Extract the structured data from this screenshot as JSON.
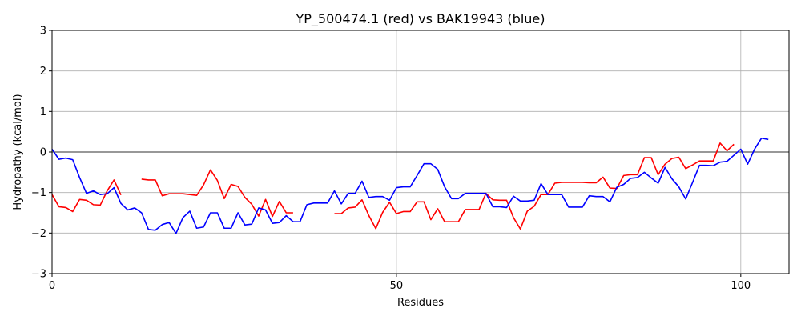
{
  "chart_data": {
    "type": "line",
    "title": "YP_500474.1 (red) vs BAK19943 (blue)",
    "xlabel": "Residues",
    "ylabel": "Hydropathy (kcal/mol)",
    "xlim": [
      0,
      107
    ],
    "ylim": [
      -3,
      3
    ],
    "xticks": [
      0,
      50,
      100
    ],
    "yticks": [
      -3,
      -2,
      -1,
      0,
      1,
      2,
      3
    ],
    "grid": true,
    "zero_line": true,
    "series": [
      {
        "color": "#ff0000",
        "segments": [
          {
            "x": [
              0,
              1,
              2,
              3,
              4,
              5,
              6,
              7,
              8,
              9,
              10
            ],
            "y": [
              -1.05,
              -1.35,
              -1.37,
              -1.47,
              -1.17,
              -1.19,
              -1.3,
              -1.31,
              -0.96,
              -0.69,
              -1.06
            ]
          },
          {
            "x": [
              13,
              14,
              15,
              16,
              17,
              18,
              19,
              20,
              21,
              22,
              23,
              24,
              25,
              26,
              27,
              28,
              29,
              30,
              31,
              32,
              33,
              34,
              35
            ],
            "y": [
              -0.67,
              -0.69,
              -0.69,
              -1.08,
              -1.03,
              -1.03,
              -1.03,
              -1.05,
              -1.07,
              -0.81,
              -0.44,
              -0.7,
              -1.15,
              -0.8,
              -0.85,
              -1.12,
              -1.29,
              -1.58,
              -1.17,
              -1.59,
              -1.22,
              -1.5,
              -1.5
            ]
          },
          {
            "x": [
              41,
              42,
              43,
              44,
              45,
              46,
              47,
              48,
              49,
              50,
              51,
              52,
              53,
              54,
              55,
              56,
              57,
              58,
              59,
              60,
              61,
              62,
              63,
              64,
              65,
              66,
              67,
              68,
              69,
              70,
              71,
              72,
              73,
              74,
              75,
              76,
              77,
              78,
              79,
              80,
              81,
              82,
              83,
              84,
              85,
              86,
              87,
              88,
              89,
              90,
              91,
              92,
              93,
              94,
              95,
              96,
              97,
              98,
              99
            ],
            "y": [
              -1.52,
              -1.52,
              -1.38,
              -1.36,
              -1.18,
              -1.57,
              -1.89,
              -1.49,
              -1.24,
              -1.52,
              -1.47,
              -1.47,
              -1.23,
              -1.23,
              -1.67,
              -1.4,
              -1.72,
              -1.72,
              -1.72,
              -1.42,
              -1.42,
              -1.42,
              -1.02,
              -1.18,
              -1.19,
              -1.19,
              -1.62,
              -1.9,
              -1.46,
              -1.34,
              -1.05,
              -1.05,
              -0.77,
              -0.75,
              -0.75,
              -0.75,
              -0.75,
              -0.76,
              -0.76,
              -0.62,
              -0.89,
              -0.9,
              -0.58,
              -0.56,
              -0.56,
              -0.14,
              -0.14,
              -0.56,
              -0.3,
              -0.16,
              -0.13,
              -0.41,
              -0.32,
              -0.22,
              -0.22,
              -0.22,
              0.22,
              0.03,
              0.19
            ]
          }
        ]
      },
      {
        "color": "#0000ff",
        "segments": [
          {
            "x": [
              0,
              1,
              2,
              3,
              4,
              5,
              6,
              7,
              8,
              9,
              10,
              11,
              12,
              13,
              14,
              15,
              16,
              17,
              18,
              19,
              20,
              21,
              22,
              23,
              24,
              25,
              26,
              27,
              28,
              29,
              30,
              31,
              32,
              33,
              34,
              35,
              36,
              37,
              38,
              39,
              40,
              41,
              42,
              43,
              44,
              45,
              46,
              47,
              48,
              49,
              50,
              51,
              52,
              53,
              54,
              55,
              56,
              57,
              58,
              59,
              60,
              61,
              62,
              63,
              64,
              65,
              66,
              67,
              68,
              69,
              70,
              71,
              72,
              73,
              74,
              75,
              76,
              77,
              78,
              79,
              80,
              81,
              82,
              83,
              84,
              85,
              86,
              87,
              88,
              89,
              90,
              91,
              92,
              93,
              94,
              95,
              96,
              97,
              98,
              99,
              100,
              101,
              102,
              103,
              104
            ],
            "y": [
              0.07,
              -0.18,
              -0.15,
              -0.19,
              -0.63,
              -1.02,
              -0.96,
              -1.05,
              -1.03,
              -0.88,
              -1.27,
              -1.43,
              -1.38,
              -1.5,
              -1.91,
              -1.93,
              -1.79,
              -1.74,
              -2.01,
              -1.62,
              -1.46,
              -1.88,
              -1.85,
              -1.5,
              -1.5,
              -1.88,
              -1.88,
              -1.5,
              -1.8,
              -1.78,
              -1.38,
              -1.43,
              -1.76,
              -1.74,
              -1.57,
              -1.72,
              -1.72,
              -1.3,
              -1.26,
              -1.26,
              -1.26,
              -0.96,
              -1.28,
              -1.02,
              -1.02,
              -0.72,
              -1.12,
              -1.1,
              -1.1,
              -1.19,
              -0.88,
              -0.86,
              -0.86,
              -0.58,
              -0.29,
              -0.29,
              -0.43,
              -0.86,
              -1.15,
              -1.15,
              -1.02,
              -1.02,
              -1.02,
              -1.02,
              -1.35,
              -1.35,
              -1.37,
              -1.09,
              -1.21,
              -1.21,
              -1.19,
              -0.78,
              -1.05,
              -1.05,
              -1.05,
              -1.36,
              -1.36,
              -1.36,
              -1.08,
              -1.1,
              -1.1,
              -1.23,
              -0.87,
              -0.8,
              -0.65,
              -0.63,
              -0.5,
              -0.64,
              -0.77,
              -0.38,
              -0.66,
              -0.86,
              -1.16,
              -0.75,
              -0.33,
              -0.33,
              -0.34,
              -0.25,
              -0.23,
              -0.08,
              0.07,
              -0.3,
              0.07,
              0.34,
              0.31
            ]
          }
        ]
      }
    ]
  }
}
